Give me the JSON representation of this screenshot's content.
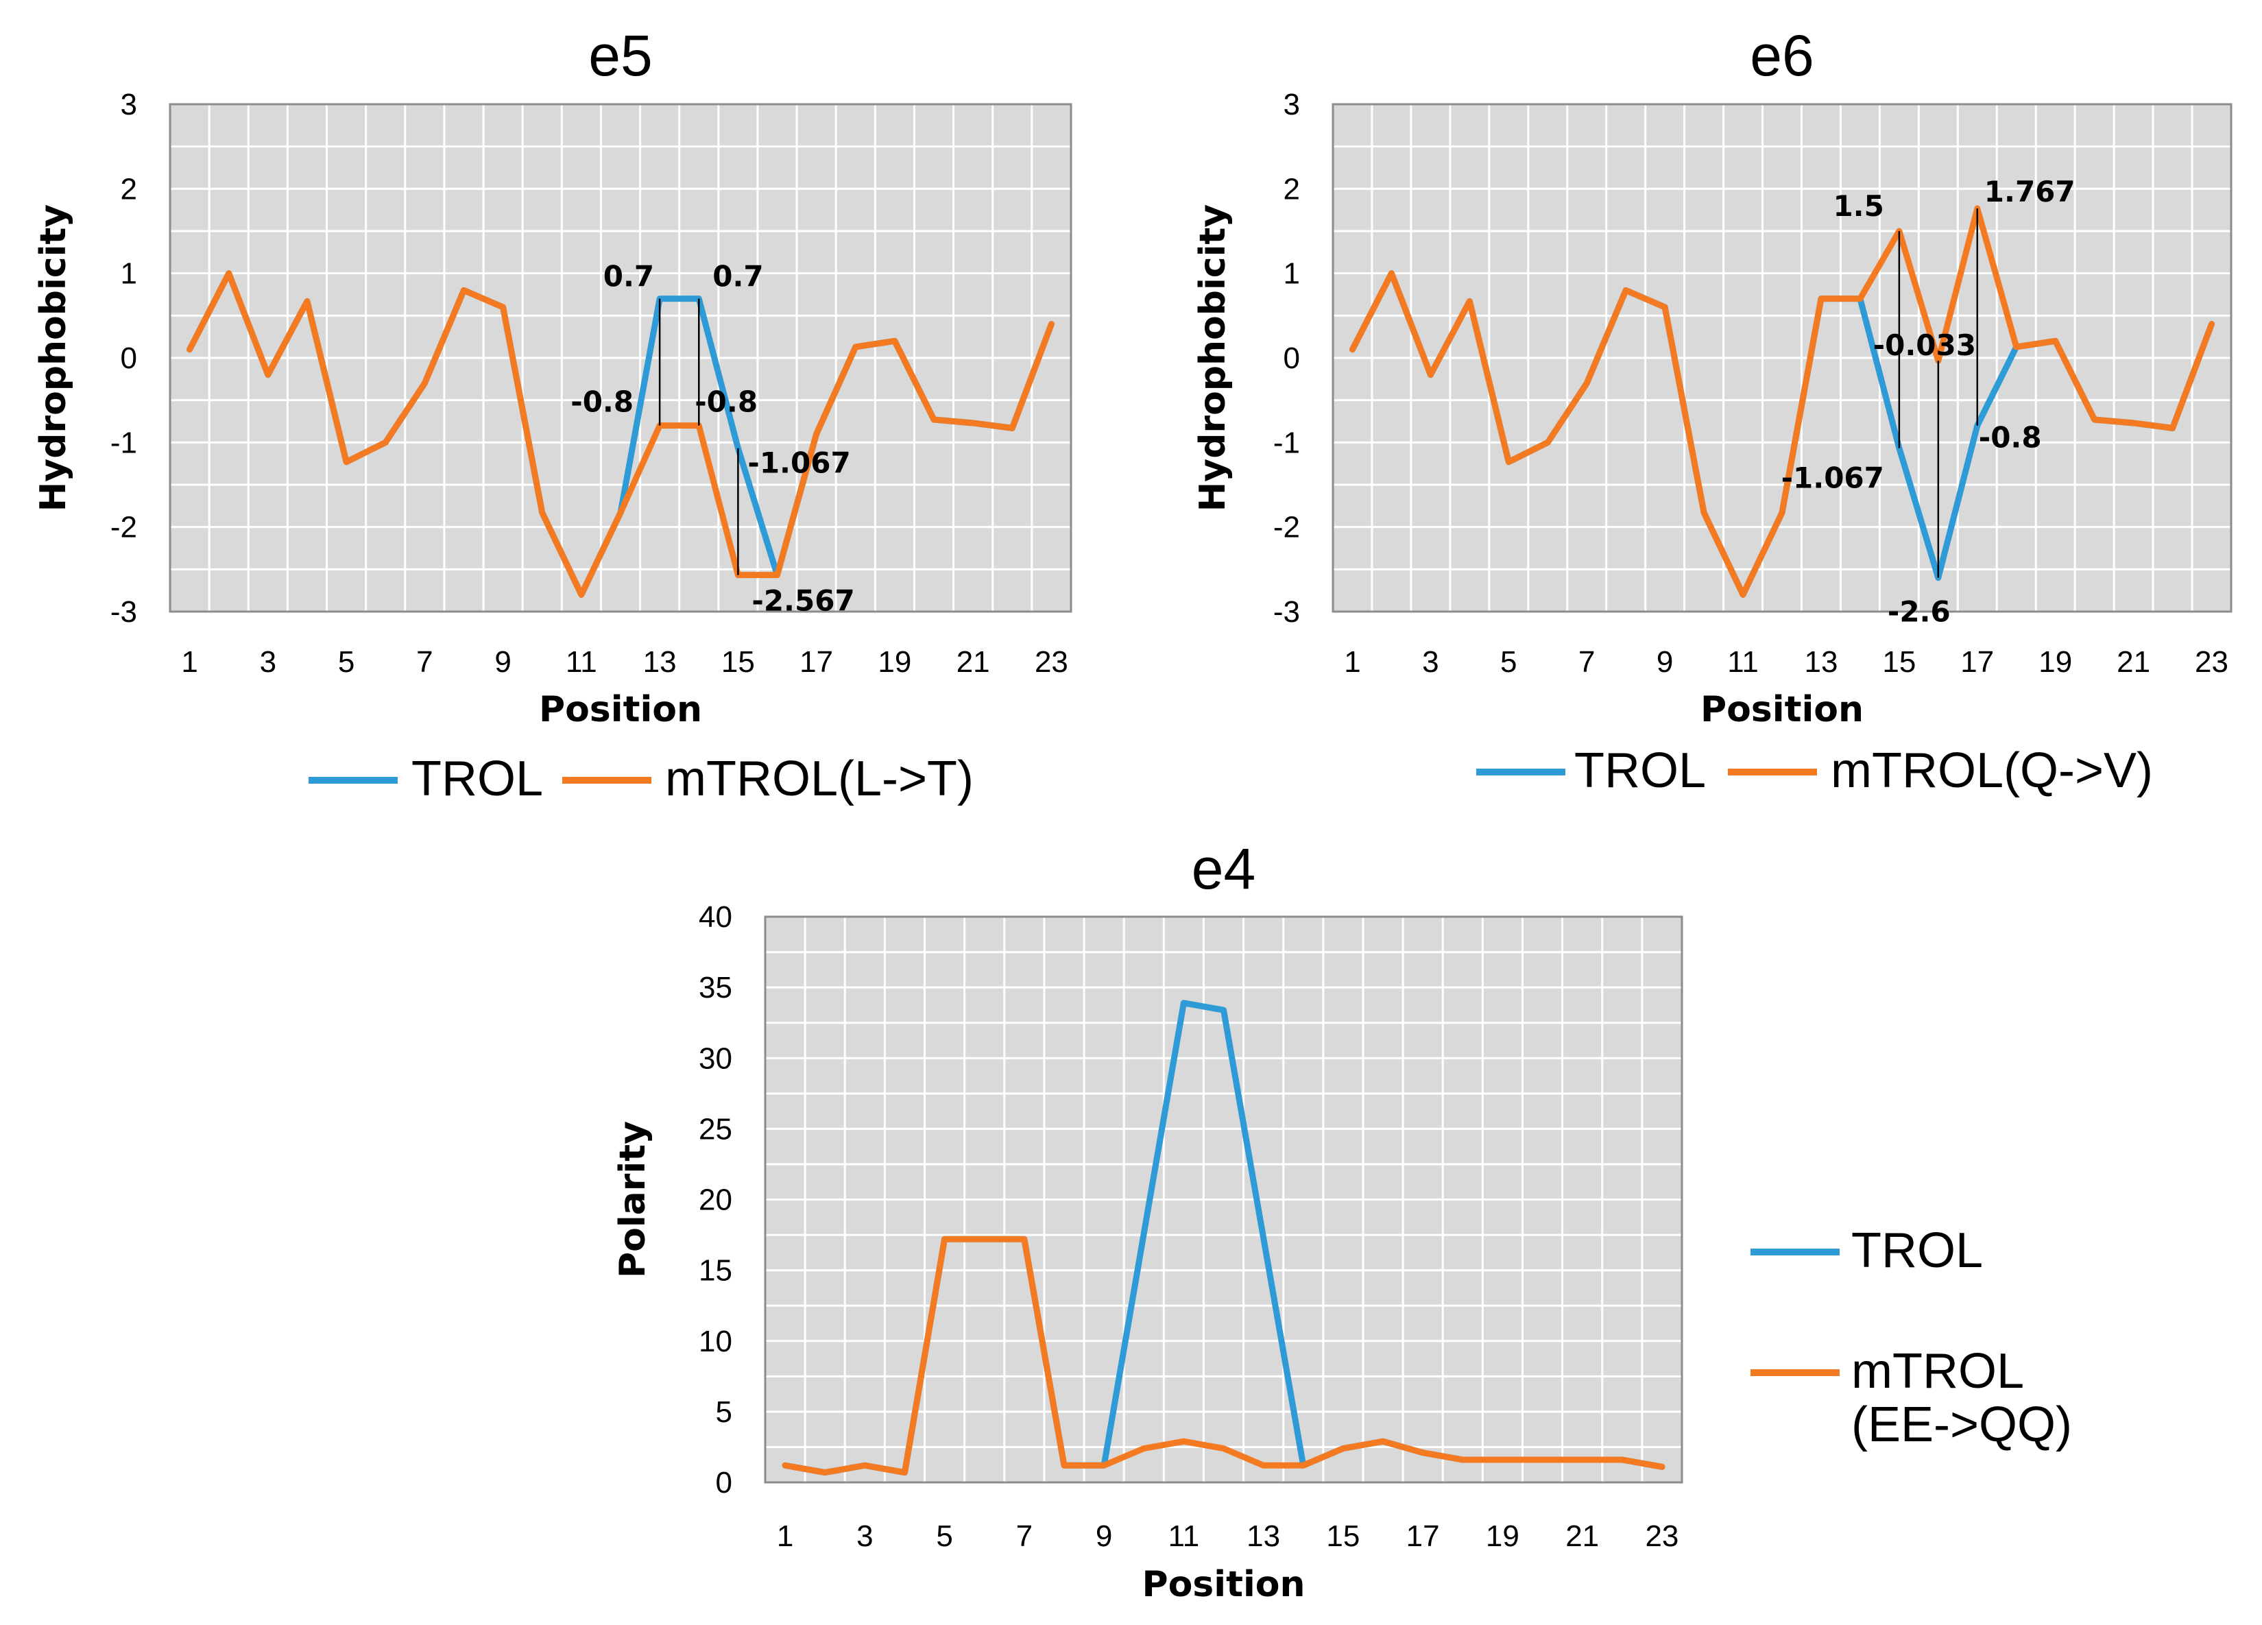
{
  "colors": {
    "trol": "#2e9ad6",
    "mtrol": "#f47a22",
    "plot_bg": "#d9d9d9",
    "grid": "#ffffff"
  },
  "chart_data": [
    {
      "id": "e5",
      "type": "line",
      "title": "e5",
      "xlabel": "Position",
      "ylabel": "Hydrophobicity",
      "ylim": [
        -3,
        3
      ],
      "ystep": 1,
      "yticks": [
        "-3",
        "-2",
        "-1",
        "0",
        "1",
        "2",
        "3"
      ],
      "x": [
        1,
        2,
        3,
        4,
        5,
        6,
        7,
        8,
        9,
        10,
        11,
        12,
        13,
        14,
        15,
        16,
        17,
        18,
        19,
        20,
        21,
        22,
        23
      ],
      "xticks": [
        "1",
        "3",
        "5",
        "7",
        "9",
        "11",
        "13",
        "15",
        "17",
        "19",
        "21",
        "23"
      ],
      "grid": true,
      "legend_position": "bottom",
      "series": [
        {
          "name": "TROL",
          "color": "#2e9ad6",
          "values": [
            0.1,
            1.0,
            -0.2,
            0.67,
            -1.23,
            -1.0,
            -0.3,
            0.8,
            0.6,
            -1.83,
            -2.8,
            -1.83,
            0.7,
            0.7,
            -1.067,
            -2.567,
            -0.9,
            0.13,
            0.2,
            -0.73,
            -0.77,
            -0.83,
            0.4
          ]
        },
        {
          "name": "mTROL(L->T)",
          "color": "#f47a22",
          "values": [
            0.1,
            1.0,
            -0.2,
            0.67,
            -1.23,
            -1.0,
            -0.3,
            0.8,
            0.6,
            -1.83,
            -2.8,
            -1.83,
            -0.8,
            -0.8,
            -2.567,
            -2.567,
            -0.9,
            0.13,
            0.2,
            -0.73,
            -0.77,
            -0.83,
            0.4
          ]
        }
      ],
      "annotations": [
        {
          "text": "0.7",
          "x": 13,
          "y": 0.7
        },
        {
          "text": "0.7",
          "x": 14,
          "y": 0.7
        },
        {
          "text": "-0.8",
          "x": 13,
          "y": -0.8
        },
        {
          "text": "-0.8",
          "x": 14,
          "y": -0.8
        },
        {
          "text": "-1.067",
          "x": 15,
          "y": -1.067
        },
        {
          "text": "-2.567",
          "x": 15,
          "y": -2.567
        }
      ]
    },
    {
      "id": "e6",
      "type": "line",
      "title": "e6",
      "xlabel": "Position",
      "ylabel": "Hydrophobicity",
      "ylim": [
        -3,
        3
      ],
      "ystep": 1,
      "yticks": [
        "-3",
        "-2",
        "-1",
        "0",
        "1",
        "2",
        "3"
      ],
      "x": [
        1,
        2,
        3,
        4,
        5,
        6,
        7,
        8,
        9,
        10,
        11,
        12,
        13,
        14,
        15,
        16,
        17,
        18,
        19,
        20,
        21,
        22,
        23
      ],
      "xticks": [
        "1",
        "3",
        "5",
        "7",
        "9",
        "11",
        "13",
        "15",
        "17",
        "19",
        "21",
        "23"
      ],
      "grid": true,
      "legend_position": "bottom",
      "series": [
        {
          "name": "TROL",
          "color": "#2e9ad6",
          "values": [
            0.1,
            1.0,
            -0.2,
            0.67,
            -1.23,
            -1.0,
            -0.3,
            0.8,
            0.6,
            -1.83,
            -2.8,
            -1.83,
            0.7,
            0.7,
            -1.067,
            -2.6,
            -0.8,
            0.13,
            0.2,
            -0.73,
            -0.77,
            -0.83,
            0.4
          ]
        },
        {
          "name": "mTROL(Q->V)",
          "color": "#f47a22",
          "values": [
            0.1,
            1.0,
            -0.2,
            0.67,
            -1.23,
            -1.0,
            -0.3,
            0.8,
            0.6,
            -1.83,
            -2.8,
            -1.83,
            0.7,
            0.7,
            1.5,
            -0.033,
            1.767,
            0.13,
            0.2,
            -0.73,
            -0.77,
            -0.83,
            0.4
          ]
        }
      ],
      "annotations": [
        {
          "text": "1.5",
          "x": 15,
          "y": 1.5
        },
        {
          "text": "1.767",
          "x": 17,
          "y": 1.767
        },
        {
          "text": "-0.033",
          "x": 16,
          "y": -0.033
        },
        {
          "text": "-1.067",
          "x": 15,
          "y": -1.067
        },
        {
          "text": "-0.8",
          "x": 17,
          "y": -0.8
        },
        {
          "text": "-2.6",
          "x": 16,
          "y": -2.6
        }
      ]
    },
    {
      "id": "e4",
      "type": "line",
      "title": "e4",
      "xlabel": "Position",
      "ylabel": "Polarity",
      "ylim": [
        0,
        40
      ],
      "ystep": 5,
      "yticks": [
        "0",
        "5",
        "10",
        "15",
        "20",
        "25",
        "30",
        "35",
        "40"
      ],
      "x": [
        1,
        2,
        3,
        4,
        5,
        6,
        7,
        8,
        9,
        10,
        11,
        12,
        13,
        14,
        15,
        16,
        17,
        18,
        19,
        20,
        21,
        22,
        23
      ],
      "xticks": [
        "1",
        "3",
        "5",
        "7",
        "9",
        "11",
        "13",
        "15",
        "17",
        "19",
        "21",
        "23"
      ],
      "grid": true,
      "legend_position": "right",
      "series": [
        {
          "name": "TROL",
          "color": "#2e9ad6",
          "values": [
            1.2,
            0.7,
            1.2,
            0.7,
            17.2,
            17.2,
            17.2,
            1.2,
            1.2,
            17.6,
            33.9,
            33.4,
            17.3,
            1.2,
            2.4,
            2.9,
            2.1,
            1.6,
            1.6,
            1.6,
            1.6,
            1.6,
            1.1
          ]
        },
        {
          "name": "mTROL\n(EE->QQ)",
          "color": "#f47a22",
          "values": [
            1.2,
            0.7,
            1.2,
            0.7,
            17.2,
            17.2,
            17.2,
            1.2,
            1.2,
            2.4,
            2.9,
            2.4,
            1.2,
            1.2,
            2.4,
            2.9,
            2.1,
            1.6,
            1.6,
            1.6,
            1.6,
            1.6,
            1.1
          ]
        }
      ],
      "annotations": []
    }
  ]
}
